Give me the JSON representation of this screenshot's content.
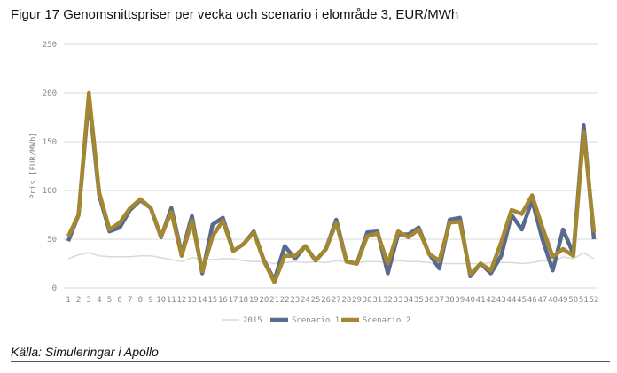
{
  "title": "Figur 17 Genomsnittspriser per vecka och scenario i elområde 3, EUR/MWh",
  "source": "Källa: Simuleringar i Apollo",
  "chart_data": {
    "type": "line",
    "title": "Figur 17 Genomsnittspriser per vecka och scenario i elområde 3, EUR/MWh",
    "xlabel": "",
    "ylabel": "Pris [EUR/MWh]",
    "ylim": [
      0,
      250
    ],
    "yticks": [
      0,
      50,
      100,
      150,
      200,
      250
    ],
    "grid": true,
    "legend": "bottom",
    "x": [
      1,
      2,
      3,
      4,
      5,
      6,
      7,
      8,
      9,
      10,
      11,
      12,
      13,
      14,
      15,
      16,
      17,
      18,
      19,
      20,
      21,
      22,
      23,
      24,
      25,
      26,
      27,
      28,
      29,
      30,
      31,
      32,
      33,
      34,
      35,
      36,
      37,
      38,
      39,
      40,
      41,
      42,
      43,
      44,
      45,
      46,
      47,
      48,
      49,
      50,
      51,
      52
    ],
    "series": [
      {
        "name": "2015",
        "color": "#d9d9d9",
        "values": [
          30,
          34,
          36,
          33,
          32,
          32,
          32,
          33,
          33,
          31,
          29,
          27,
          31,
          30,
          29,
          30,
          30,
          28,
          27,
          27,
          25,
          26,
          27,
          26,
          27,
          26,
          28,
          27,
          26,
          27,
          27,
          26,
          28,
          27,
          27,
          26,
          25,
          25,
          25,
          25,
          25,
          26,
          26,
          26,
          25,
          26,
          28,
          27,
          32,
          30,
          36,
          30
        ]
      },
      {
        "name": "Scenario 1",
        "color": "#5a6a8e",
        "values": [
          48,
          75,
          195,
          95,
          58,
          62,
          80,
          90,
          82,
          52,
          82,
          35,
          74,
          15,
          65,
          72,
          38,
          45,
          58,
          28,
          8,
          43,
          30,
          43,
          28,
          40,
          70,
          27,
          25,
          57,
          58,
          15,
          55,
          55,
          62,
          35,
          20,
          70,
          72,
          12,
          25,
          15,
          33,
          75,
          60,
          90,
          50,
          18,
          60,
          35,
          167,
          50
        ]
      },
      {
        "name": "Scenario 2",
        "color": "#a38731",
        "values": [
          53,
          75,
          200,
          98,
          60,
          67,
          82,
          91,
          82,
          53,
          78,
          33,
          69,
          17,
          53,
          69,
          38,
          45,
          57,
          27,
          6,
          33,
          33,
          43,
          28,
          40,
          67,
          27,
          25,
          53,
          56,
          25,
          58,
          52,
          60,
          35,
          28,
          67,
          68,
          14,
          25,
          18,
          47,
          80,
          76,
          95,
          62,
          32,
          40,
          33,
          160,
          57
        ]
      }
    ]
  }
}
